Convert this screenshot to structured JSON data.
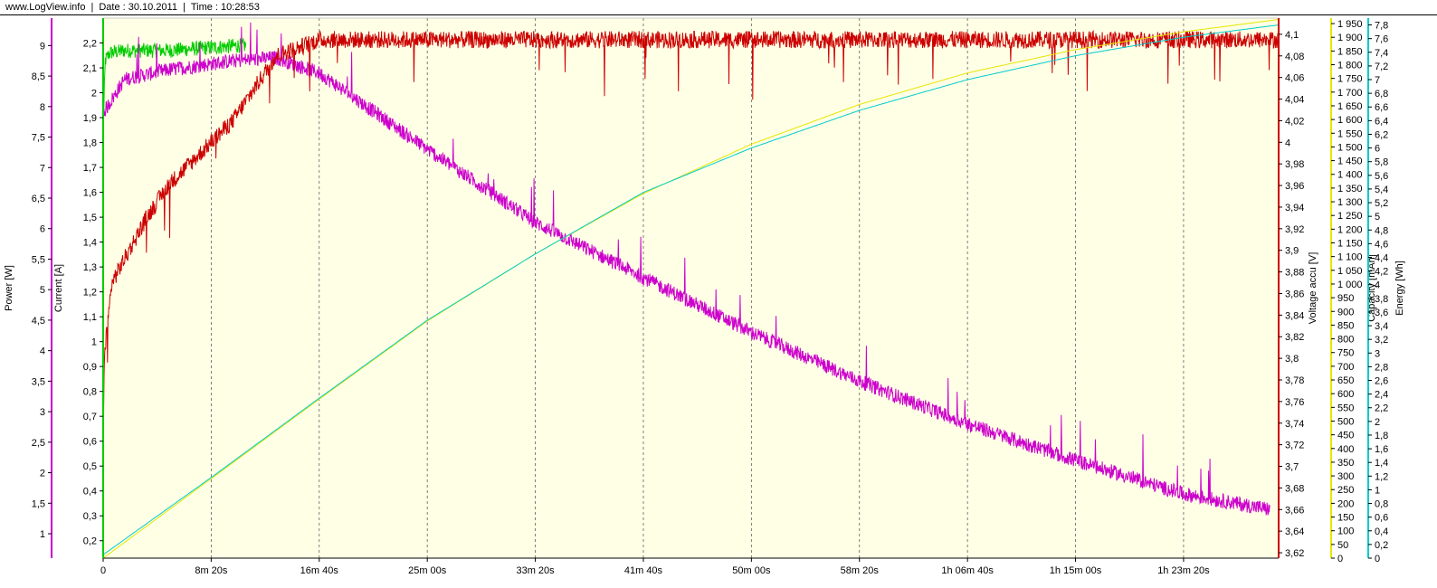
{
  "header": {
    "site": "www.LogView.info",
    "date": "Date : 30.10.2011",
    "time": "Time : 10:28:53"
  },
  "colors": {
    "plot_bg": "#ffffe6",
    "grid": "#606060",
    "power": "#cc00cc",
    "current": "#00cc00",
    "voltage": "#cc0000",
    "capacity": "#e6e600",
    "energy": "#00cccc",
    "axis_line": "#000000"
  },
  "chart_data": {
    "type": "line",
    "title": "",
    "xlabel": "",
    "x_unit": "seconds",
    "x_range": [
      0,
      5440
    ],
    "x_ticks": [
      {
        "v": 0,
        "label": "0"
      },
      {
        "v": 500,
        "label": "8m 20s"
      },
      {
        "v": 1000,
        "label": "16m 40s"
      },
      {
        "v": 1500,
        "label": "25m 00s"
      },
      {
        "v": 2000,
        "label": "33m 20s"
      },
      {
        "v": 2500,
        "label": "41m 40s"
      },
      {
        "v": 3000,
        "label": "50m 00s"
      },
      {
        "v": 3500,
        "label": "58m 20s"
      },
      {
        "v": 4000,
        "label": "1h 06m 40s"
      },
      {
        "v": 4500,
        "label": "1h 15m 00s"
      },
      {
        "v": 5000,
        "label": "1h 23m 20s"
      }
    ],
    "grid": "vertical dashed at x ticks",
    "axes": {
      "power": {
        "label": "Power [W]",
        "side": "left",
        "range": [
          0.6,
          9.45
        ],
        "ticks": [
          "1",
          "1,5",
          "2",
          "2,5",
          "3",
          "3,5",
          "4",
          "4,5",
          "5",
          "5,5",
          "6",
          "6,5",
          "7",
          "7,5",
          "8",
          "8,5",
          "9"
        ],
        "tick_values": [
          1,
          1.5,
          2,
          2.5,
          3,
          3.5,
          4,
          4.5,
          5,
          5.5,
          6,
          6.5,
          7,
          7.5,
          8,
          8.5,
          9
        ]
      },
      "current": {
        "label": "Current [A]",
        "side": "left",
        "range": [
          0.13,
          2.3
        ],
        "ticks": [
          "0,2",
          "0,3",
          "0,4",
          "0,5",
          "0,6",
          "0,7",
          "0,8",
          "0,9",
          "1",
          "1,1",
          "1,2",
          "1,3",
          "1,4",
          "1,5",
          "1,6",
          "1,7",
          "1,8",
          "1,9",
          "2",
          "2,1",
          "2,2"
        ],
        "tick_values": [
          0.2,
          0.3,
          0.4,
          0.5,
          0.6,
          0.7,
          0.8,
          0.9,
          1,
          1.1,
          1.2,
          1.3,
          1.4,
          1.5,
          1.6,
          1.7,
          1.8,
          1.9,
          2,
          2.1,
          2.2
        ]
      },
      "voltage": {
        "label": "Voltage accu [V]",
        "side": "right",
        "range": [
          3.615,
          4.115
        ],
        "ticks": [
          "3,62",
          "3,64",
          "3,66",
          "3,68",
          "3,7",
          "3,72",
          "3,74",
          "3,76",
          "3,78",
          "3,8",
          "3,82",
          "3,84",
          "3,86",
          "3,88",
          "3,9",
          "3,92",
          "3,94",
          "3,96",
          "3,98",
          "4",
          "4,02",
          "4,04",
          "4,06",
          "4,08",
          "4,1"
        ],
        "tick_values": [
          3.62,
          3.64,
          3.66,
          3.68,
          3.7,
          3.72,
          3.74,
          3.76,
          3.78,
          3.8,
          3.82,
          3.84,
          3.86,
          3.88,
          3.9,
          3.92,
          3.94,
          3.96,
          3.98,
          4,
          4.02,
          4.04,
          4.06,
          4.08,
          4.1
        ]
      },
      "capacity": {
        "label": "Capacity [mAh]",
        "side": "right",
        "range": [
          0,
          1970
        ],
        "ticks": [
          "0",
          "50",
          "100",
          "150",
          "200",
          "250",
          "300",
          "350",
          "400",
          "450",
          "500",
          "550",
          "600",
          "650",
          "700",
          "750",
          "800",
          "850",
          "900",
          "950",
          "1 000",
          "1 050",
          "1 100",
          "1 150",
          "1 200",
          "1 250",
          "1 300",
          "1 350",
          "1 400",
          "1 450",
          "1 500",
          "1 550",
          "1 600",
          "1 650",
          "1 700",
          "1 750",
          "1 800",
          "1 850",
          "1 900",
          "1 950"
        ],
        "tick_values": [
          0,
          50,
          100,
          150,
          200,
          250,
          300,
          350,
          400,
          450,
          500,
          550,
          600,
          650,
          700,
          750,
          800,
          850,
          900,
          950,
          1000,
          1050,
          1100,
          1150,
          1200,
          1250,
          1300,
          1350,
          1400,
          1450,
          1500,
          1550,
          1600,
          1650,
          1700,
          1750,
          1800,
          1850,
          1900,
          1950
        ]
      },
      "energy": {
        "label": "Energy [Wh]",
        "side": "right",
        "range": [
          0,
          7.9
        ],
        "ticks": [
          "0",
          "0,2",
          "0,4",
          "0,6",
          "0,8",
          "1",
          "1,2",
          "1,4",
          "1,6",
          "1,8",
          "2",
          "2,2",
          "2,4",
          "2,6",
          "2,8",
          "3",
          "3,2",
          "3,4",
          "3,6",
          "3,8",
          "4",
          "4,2",
          "4,4",
          "4,6",
          "4,8",
          "5",
          "5,2",
          "5,4",
          "5,6",
          "5,8",
          "6",
          "6,2",
          "6,4",
          "6,6",
          "6,8",
          "7",
          "7,2",
          "7,4",
          "7,6",
          "7,8"
        ],
        "tick_values": [
          0,
          0.2,
          0.4,
          0.6,
          0.8,
          1,
          1.2,
          1.4,
          1.6,
          1.8,
          2,
          2.2,
          2.4,
          2.6,
          2.8,
          3,
          3.2,
          3.4,
          3.6,
          3.8,
          4,
          4.2,
          4.4,
          4.6,
          4.8,
          5,
          5.2,
          5.4,
          5.6,
          5.8,
          6,
          6.2,
          6.4,
          6.6,
          6.8,
          7,
          7.2,
          7.4,
          7.6,
          7.8
        ]
      }
    },
    "series": [
      {
        "name": "Current [A]",
        "axis": "current",
        "color": "#00cc00",
        "noise": 0.03,
        "x": [
          0,
          10,
          30,
          100,
          300,
          640,
          660
        ],
        "y": [
          1.85,
          2.13,
          2.16,
          2.17,
          2.17,
          2.19,
          2.19
        ]
      },
      {
        "name": "Power [W]",
        "axis": "power",
        "color": "#cc00cc",
        "noise": 0.12,
        "x": [
          0,
          20,
          100,
          300,
          600,
          800,
          1000,
          1500,
          2000,
          2500,
          3000,
          3500,
          4000,
          4500,
          5000,
          5400
        ],
        "y": [
          7.9,
          8.0,
          8.45,
          8.6,
          8.75,
          8.8,
          8.55,
          7.3,
          6.1,
          5.2,
          4.3,
          3.5,
          2.8,
          2.2,
          1.65,
          1.4
        ]
      },
      {
        "name": "Voltage accu [V]",
        "axis": "voltage",
        "color": "#cc0000",
        "noise": 0.008,
        "x": [
          0,
          5,
          40,
          120,
          200,
          300,
          400,
          500,
          600,
          700,
          800,
          1000,
          1500,
          2500,
          3500,
          5440
        ],
        "y": [
          3.72,
          3.8,
          3.87,
          3.9,
          3.93,
          3.96,
          3.98,
          4.0,
          4.02,
          4.05,
          4.08,
          4.095,
          4.095,
          4.095,
          4.095,
          4.095
        ]
      },
      {
        "name": "Capacity [mAh]",
        "axis": "capacity",
        "color": "#e6e600",
        "noise": 0,
        "x": [
          0,
          500,
          1000,
          1500,
          2000,
          2500,
          3000,
          3500,
          4000,
          4500,
          5000,
          5440
        ],
        "y": [
          0,
          290,
          580,
          865,
          1110,
          1330,
          1510,
          1655,
          1770,
          1855,
          1920,
          1965
        ]
      },
      {
        "name": "Energy [Wh]",
        "axis": "energy",
        "color": "#00cccc",
        "noise": 0,
        "x": [
          0,
          500,
          1000,
          1500,
          2000,
          2500,
          3000,
          3500,
          4000,
          4500,
          5000,
          5440
        ],
        "y": [
          0.05,
          1.18,
          2.34,
          3.48,
          4.45,
          5.35,
          6.0,
          6.55,
          7.0,
          7.35,
          7.62,
          7.8
        ]
      }
    ]
  }
}
